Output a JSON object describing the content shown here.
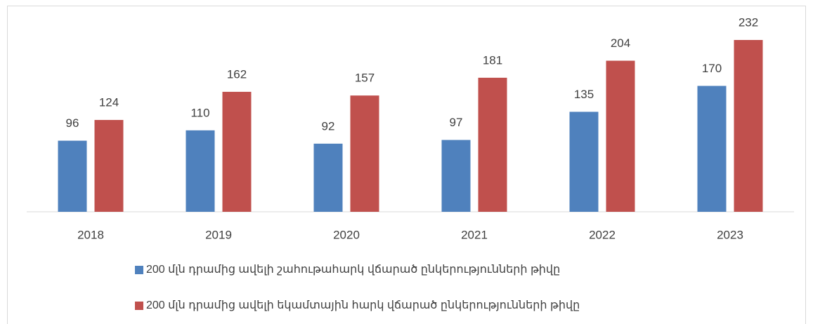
{
  "chart_data": {
    "type": "bar",
    "categories": [
      "2018",
      "2019",
      "2020",
      "2021",
      "2022",
      "2023"
    ],
    "series": [
      {
        "name": "200 մլն դրամից ավելի շահութահարկ վճարած ընկերությունների թիվը",
        "color": "#4f81bd",
        "values": [
          96,
          110,
          92,
          97,
          135,
          170
        ]
      },
      {
        "name": "200 մլն դրամից ավելի եկամտային հարկ վճարած ընկերությունների թիվը",
        "color": "#c0504d",
        "values": [
          124,
          162,
          157,
          181,
          204,
          232
        ]
      }
    ],
    "ylim": [
      0,
      250
    ],
    "legend": "bottom"
  }
}
